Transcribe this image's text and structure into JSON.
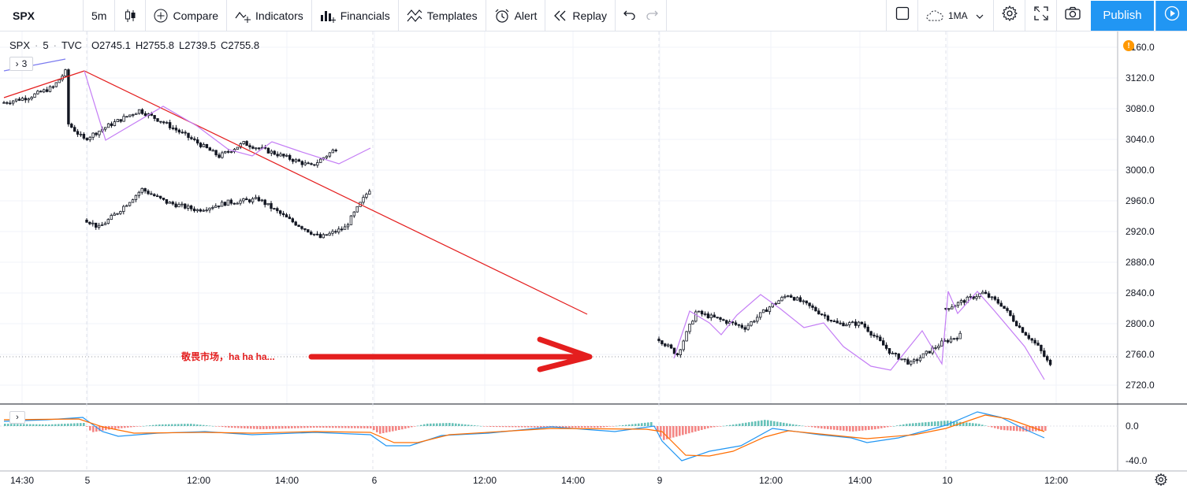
{
  "toolbar": {
    "symbol": "SPX",
    "interval": "5m",
    "compare": "Compare",
    "indicators": "Indicators",
    "financials": "Financials",
    "templates": "Templates",
    "alert": "Alert",
    "replay": "Replay",
    "indicator_chip": "1MA",
    "publish": "Publish"
  },
  "legend": {
    "symbol": "SPX",
    "interval": "5",
    "source": "TVC",
    "open": "O2745.1",
    "high": "H2755.8",
    "low": "L2739.5",
    "close": "C2755.8",
    "collapsed_count": "3"
  },
  "annotation": {
    "text": "敬畏市场，ha ha ha...",
    "color": "#e41e1e"
  },
  "colors": {
    "accent": "#2196f3",
    "trendline": "#e41e1e",
    "zigzag": "#c47df5",
    "macd_line": "#2196f3",
    "signal_line": "#ff6d00",
    "hist_pos": "#26a69a",
    "hist_neg": "#ef5350"
  },
  "price_axis": [
    "3160.0",
    "3120.0",
    "3080.0",
    "3040.0",
    "3000.0",
    "2960.0",
    "2920.0",
    "2880.0",
    "2840.0",
    "2800.0",
    "2760.0",
    "2720.0"
  ],
  "macd_axis": [
    "0.0",
    "-40.0"
  ],
  "time_axis": [
    "14:30",
    "5",
    "12:00",
    "14:00",
    "6",
    "12:00",
    "14:00",
    "9",
    "12:00",
    "14:00",
    "10",
    "12:00"
  ],
  "chart_data": {
    "type": "candlestick",
    "symbol": "SPX",
    "ylim": [
      2700,
      3175
    ],
    "segments": [
      {
        "day": "5",
        "anchors": [
          [
            0,
            3088
          ],
          [
            8,
            3095
          ],
          [
            16,
            3108
          ],
          [
            20,
            3128
          ],
          [
            21,
            3060
          ],
          [
            26,
            3040
          ],
          [
            34,
            3058
          ],
          [
            44,
            3078
          ],
          [
            52,
            3062
          ],
          [
            62,
            3038
          ],
          [
            70,
            3018
          ],
          [
            78,
            3035
          ],
          [
            88,
            3022
          ],
          [
            100,
            3005
          ],
          [
            108,
            3028
          ]
        ]
      },
      {
        "day": "6",
        "anchors": [
          [
            0,
            2935
          ],
          [
            4,
            2925
          ],
          [
            10,
            2945
          ],
          [
            18,
            2975
          ],
          [
            26,
            2958
          ],
          [
            36,
            2948
          ],
          [
            46,
            2958
          ],
          [
            56,
            2962
          ],
          [
            66,
            2935
          ],
          [
            76,
            2912
          ],
          [
            84,
            2925
          ],
          [
            92,
            2975
          ]
        ]
      },
      {
        "day": "9",
        "anchors": [
          [
            0,
            2780
          ],
          [
            6,
            2760
          ],
          [
            12,
            2815
          ],
          [
            20,
            2805
          ],
          [
            28,
            2795
          ],
          [
            36,
            2822
          ],
          [
            42,
            2838
          ],
          [
            50,
            2820
          ],
          [
            58,
            2800
          ],
          [
            66,
            2800
          ],
          [
            76,
            2760
          ],
          [
            82,
            2748
          ],
          [
            92,
            2775
          ],
          [
            98,
            2785
          ]
        ]
      },
      {
        "day": "10",
        "anchors": [
          [
            0,
            2820
          ],
          [
            6,
            2830
          ],
          [
            12,
            2840
          ],
          [
            18,
            2825
          ],
          [
            24,
            2795
          ],
          [
            30,
            2770
          ],
          [
            34,
            2745
          ]
        ]
      }
    ]
  }
}
